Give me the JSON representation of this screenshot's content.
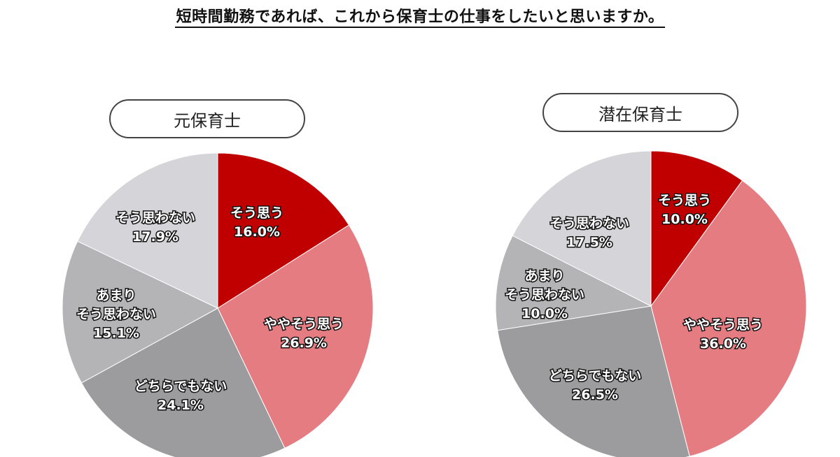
{
  "title": "短時間勤務であれば、これから保育士の仕事をしたいと思いますか。",
  "colors": {
    "so_omou": "#C00000",
    "yaya": "#E57C82",
    "dochira": "#9C9B9E",
    "amari": "#B4B3B6",
    "omowanai": "#D5D4D8"
  },
  "charts": [
    {
      "label": "元保育士"
    },
    {
      "label": "潜在保育士"
    }
  ],
  "chart_data": [
    {
      "type": "pie",
      "title": "元保育士",
      "categories": [
        "そう思う",
        "ややそう思う",
        "どちらでもない",
        "あまりそう思わない",
        "そう思わない"
      ],
      "values": [
        16.0,
        26.9,
        24.1,
        15.1,
        17.9
      ],
      "value_labels": [
        "16.0%",
        "26.9%",
        "24.1%",
        "15.1%",
        "17.9%"
      ],
      "start_angle": "12 o'clock, clockwise"
    },
    {
      "type": "pie",
      "title": "潜在保育士",
      "categories": [
        "そう思う",
        "ややそう思う",
        "どちらでもない",
        "あまりそう思わない",
        "そう思わない"
      ],
      "values": [
        10.0,
        36.0,
        26.5,
        10.0,
        17.5
      ],
      "value_labels": [
        "10.0%",
        "36.0%",
        "26.5%",
        "10.0%",
        "17.5%"
      ],
      "start_angle": "12 o'clock, clockwise"
    }
  ],
  "suptitle": "短時間勤務であれば、これから保育士の仕事をしたいと思いますか。"
}
